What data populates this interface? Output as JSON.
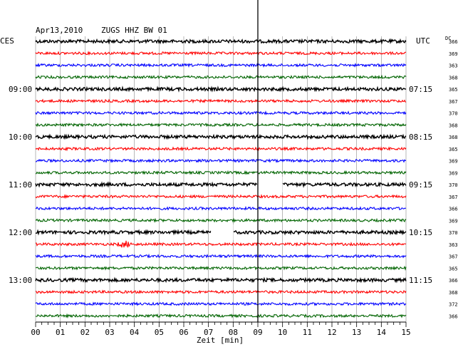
{
  "header": {
    "date": "Apr13,2010",
    "station": "ZUGS HHZ BW 01"
  },
  "left_label": "CES",
  "right_label": "UTC",
  "dc_label": "DC",
  "chart_data": {
    "type": "line",
    "description_kind": "helicorder",
    "x_axis": {
      "label": "Zeit [min]",
      "range": [
        0,
        15
      ],
      "major_ticks": [
        "00",
        "01",
        "02",
        "03",
        "04",
        "05",
        "06",
        "07",
        "08",
        "09",
        "10",
        "11",
        "12",
        "13",
        "14",
        "15"
      ],
      "minor_ticks_per_major": 4,
      "grid": true
    },
    "trace_colors": [
      "#000000",
      "#ff0000",
      "#0000ff",
      "#006400"
    ],
    "traces_count": 24,
    "left_time_labels": [
      {
        "trace_index": 4,
        "text": "09:00"
      },
      {
        "trace_index": 8,
        "text": "10:00"
      },
      {
        "trace_index": 12,
        "text": "11:00"
      },
      {
        "trace_index": 16,
        "text": "12:00"
      },
      {
        "trace_index": 20,
        "text": "13:00"
      }
    ],
    "right_time_labels": [
      {
        "trace_index": 4,
        "text": "07:15"
      },
      {
        "trace_index": 8,
        "text": "08:15"
      },
      {
        "trace_index": 12,
        "text": "09:15"
      },
      {
        "trace_index": 16,
        "text": "10:15"
      },
      {
        "trace_index": 20,
        "text": "11:15"
      }
    ],
    "dc_values": [
      366,
      369,
      363,
      368,
      365,
      367,
      370,
      368,
      368,
      365,
      369,
      369,
      370,
      367,
      366,
      369,
      370,
      363,
      367,
      365,
      366,
      368,
      372,
      366
    ],
    "data_gaps": [
      {
        "trace_index": 12,
        "from_min": 9.0,
        "to_min": 10.0
      },
      {
        "trace_index": 16,
        "from_min": 7.1,
        "to_min": 8.0
      }
    ],
    "events": [
      {
        "trace_index": 17,
        "at_min": 3.6,
        "kind": "burst"
      }
    ],
    "vertical_marker_min": 9.0
  }
}
